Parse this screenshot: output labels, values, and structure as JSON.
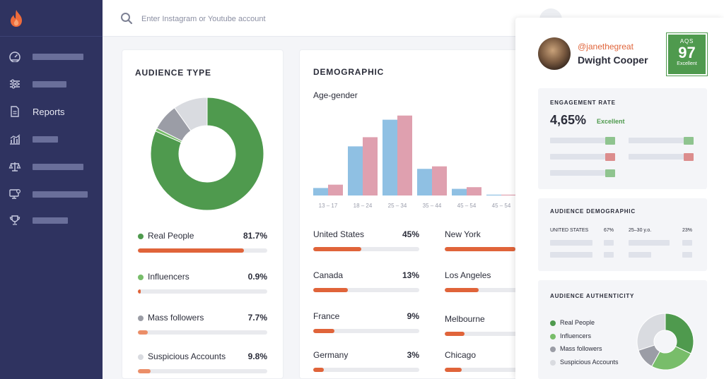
{
  "search": {
    "placeholder": "Enter Instagram or Youtube account"
  },
  "sidebar": {
    "items": [
      {
        "icon": "gauge-icon"
      },
      {
        "icon": "sliders-icon"
      },
      {
        "icon": "document-icon",
        "label": "Reports"
      },
      {
        "icon": "chart-icon"
      },
      {
        "icon": "balance-icon"
      },
      {
        "icon": "monitor-icon"
      },
      {
        "icon": "trophy-icon"
      }
    ]
  },
  "audience_type": {
    "title": "AUDIENCE TYPE",
    "items": [
      {
        "label": "Real People",
        "value": "81.7%",
        "pct": 81.7,
        "color": "#4f9a4e"
      },
      {
        "label": "Influencers",
        "value": "0.9%",
        "pct": 0.9,
        "color": "#78bd6a"
      },
      {
        "label": "Mass followers",
        "value": "7.7%",
        "pct": 7.7,
        "color": "#9b9da6"
      },
      {
        "label": "Suspicious Accounts",
        "value": "9.8%",
        "pct": 9.8,
        "color": "#d9dbe0"
      }
    ]
  },
  "demographic": {
    "title": "DEMOGRAPHIC",
    "subtitle": "Age-gender",
    "countries": [
      {
        "label": "United States",
        "value": "45%",
        "pct": 45
      },
      {
        "label": "Canada",
        "value": "13%",
        "pct": 13
      },
      {
        "label": "France",
        "value": "9%",
        "pct": 9
      },
      {
        "label": "Germany",
        "value": "3%",
        "pct": 3
      }
    ],
    "cities": [
      {
        "label": "New York",
        "pct": 60
      },
      {
        "label": "Los Angeles",
        "pct": 24
      },
      {
        "label": "Melbourne",
        "pct": 14
      },
      {
        "label": "Chicago",
        "pct": 12
      }
    ]
  },
  "chart_data": {
    "type": "bar",
    "categories": [
      "13 – 17",
      "18 – 24",
      "25 – 34",
      "35 – 44",
      "45 – 54",
      "45 – 54"
    ],
    "series": [
      {
        "color": "#8fc0e3",
        "values": [
          9,
          59,
          91,
          32,
          8,
          1
        ]
      },
      {
        "color": "#dfa0af",
        "values": [
          13,
          70,
          96,
          35,
          10,
          1
        ]
      }
    ],
    "ylim": [
      0,
      100
    ]
  },
  "profile": {
    "handle": "@janethegreat",
    "name": "Dwight Cooper",
    "aqs_label": "AQS",
    "aqs_value": "97",
    "aqs_rating": "Excellent",
    "engagement": {
      "title": "ENGAGEMENT RATE",
      "value": "4,65%",
      "rating": "Excellent",
      "colors": {
        "green": "#8fc48f",
        "red": "#dc8d8d"
      }
    },
    "audience_demographic": {
      "title": "AUDIENCE DEMOGRAPHIC",
      "country": "UNITED STATES",
      "country_value": "67%",
      "age": "25–30 y.o.",
      "age_value": "23%"
    },
    "audience_authenticity": {
      "title": "AUDIENCE AUTHENTICITY",
      "items": [
        {
          "label": "Real People",
          "color": "#4f9a4e",
          "pct": 32
        },
        {
          "label": "Influencers",
          "color": "#78bd6a",
          "pct": 26
        },
        {
          "label": "Mass followers",
          "color": "#9b9da6",
          "pct": 12
        },
        {
          "label": "Suspicious Accounts",
          "color": "#d9dbe0",
          "pct": 30
        }
      ]
    }
  }
}
